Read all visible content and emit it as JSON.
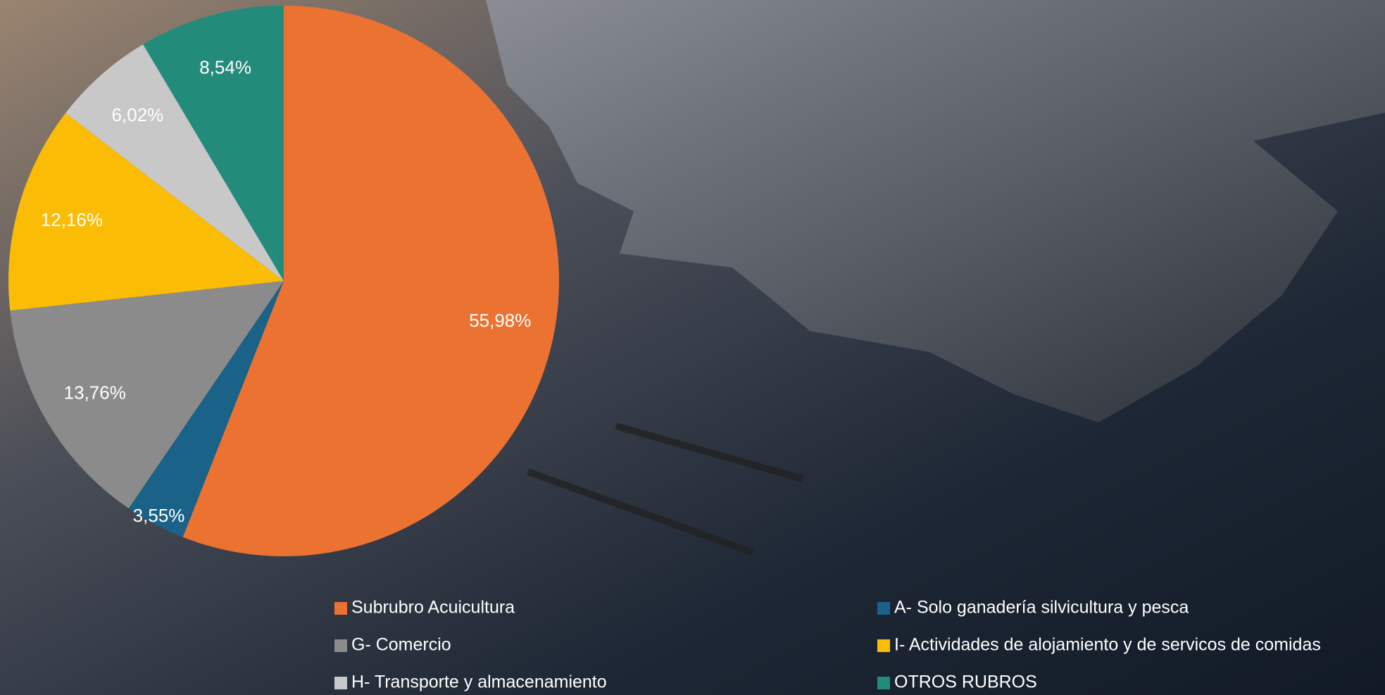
{
  "chart_data": {
    "type": "pie",
    "categories": [
      "Subrubro Acuicultura",
      "A- Solo ganadería silvicultura y pesca",
      "G- Comercio",
      "I- Actividades de alojamiento y de servicos de comidas",
      "H- Transporte y almacenamiento",
      "OTROS RUBROS"
    ],
    "values": [
      55.98,
      3.55,
      13.76,
      12.16,
      6.02,
      8.54
    ],
    "value_labels": [
      "55,98%",
      "3,55%",
      "13,76%",
      "12,16%",
      "6,02%",
      "8,54%"
    ],
    "colors": [
      "#ec7232",
      "#1a6287",
      "#8b8b8b",
      "#fbbc05",
      "#c8c8c8",
      "#238b7a"
    ]
  }
}
